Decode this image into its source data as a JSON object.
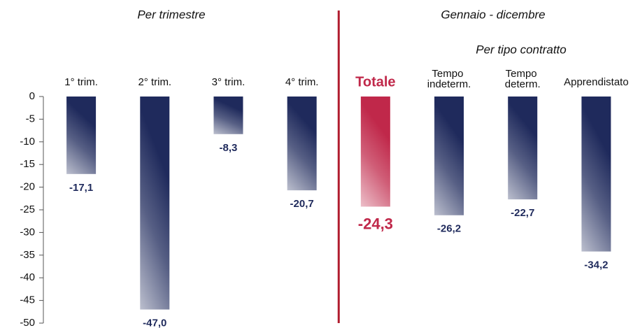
{
  "chart_data": {
    "type": "bar",
    "annotations": [
      "Per trimestre",
      "Gennaio - dicembre",
      "Per tipo contratto"
    ],
    "categories": [
      "1° trim.",
      "2° trim.",
      "3° trim.",
      "4° trim.",
      "Totale",
      "Tempo indeterm.",
      "Tempo determ.",
      "Apprendistato"
    ],
    "values": [
      -17.1,
      -47.0,
      -8.3,
      -20.7,
      -24.3,
      -26.2,
      -22.7,
      -34.2
    ],
    "value_labels": [
      "-17,1",
      "-47,0",
      "-8,3",
      "-20,7",
      "-24,3",
      "-26,2",
      "-22,7",
      "-34,2"
    ],
    "color": "#1f2a5c",
    "colors": [
      "#1f2a5c",
      "#1f2a5c",
      "#1f2a5c",
      "#1f2a5c",
      "#c0284a",
      "#1f2a5c",
      "#1f2a5c",
      "#1f2a5c"
    ],
    "divider_color": "#b01c2e",
    "ylim": [
      -50,
      0
    ],
    "yticks": [
      0,
      -5,
      -10,
      -15,
      -20,
      -25,
      -30,
      -35,
      -40,
      -45,
      -50
    ],
    "grid": false
  }
}
